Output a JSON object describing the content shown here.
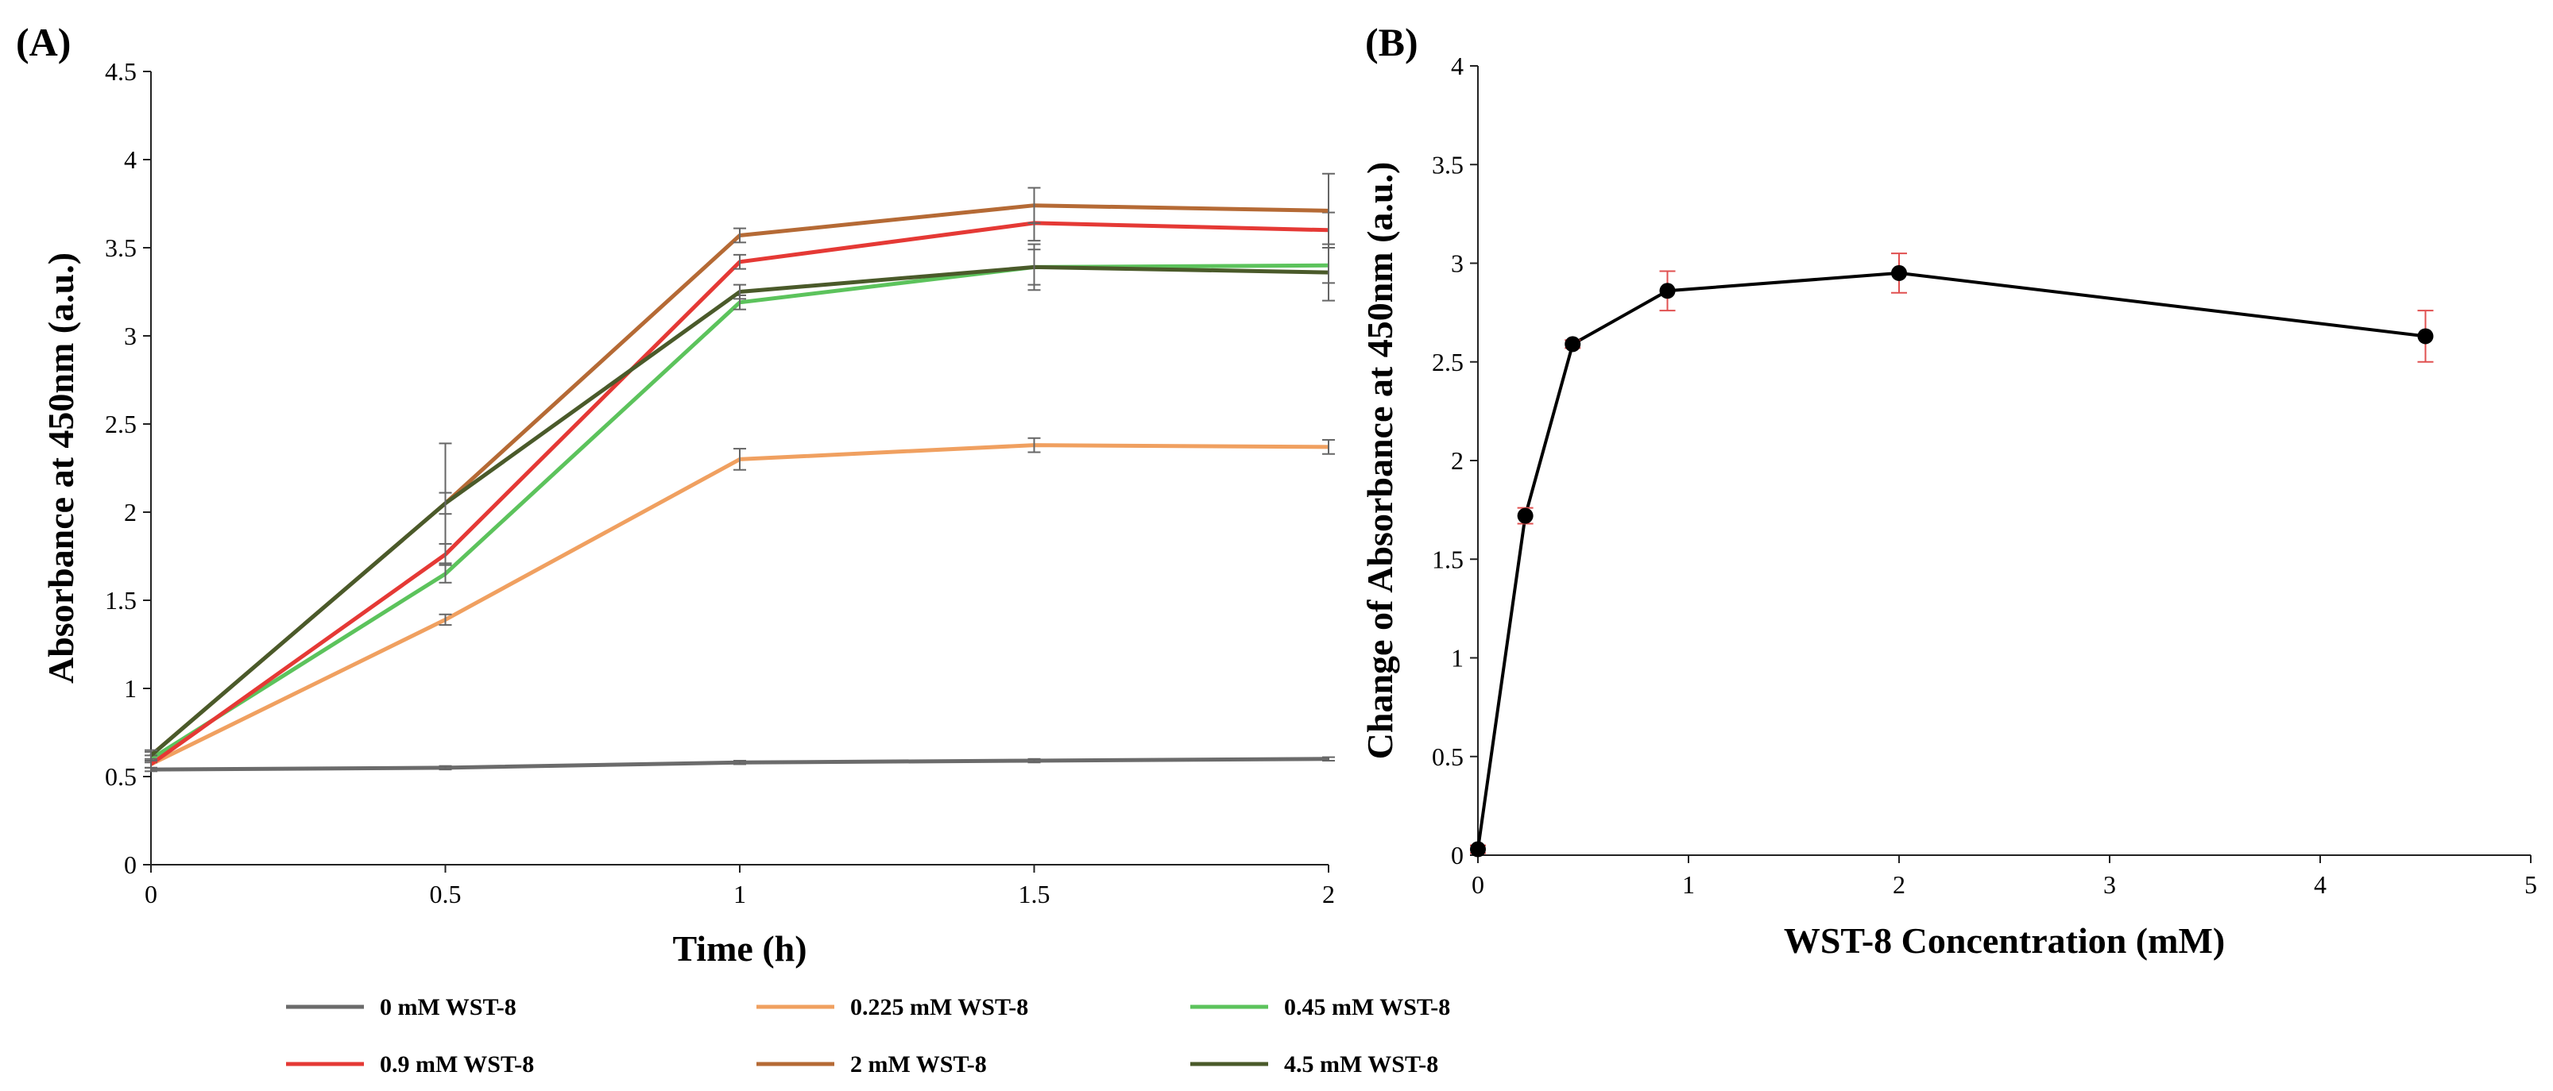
{
  "chart_data": [
    {
      "panel_label": "(A)",
      "type": "line",
      "xlabel": "Time (h)",
      "ylabel": "Absorbance at 450nm (a.u.)",
      "xlim": [
        0,
        2
      ],
      "ylim": [
        0,
        4.5
      ],
      "x_ticks": [
        "0",
        "0.5",
        "1",
        "1.5",
        "2"
      ],
      "y_ticks": [
        "0",
        "0.5",
        "1",
        "1.5",
        "2",
        "2.5",
        "3",
        "3.5",
        "4",
        "4.5"
      ],
      "x": [
        0,
        0.5,
        1,
        1.5,
        2
      ],
      "grid": false,
      "legend_position": "bottom",
      "series": [
        {
          "name": "0 mM WST-8",
          "color": "#6b6b6b",
          "values": [
            0.54,
            0.55,
            0.58,
            0.59,
            0.6
          ],
          "errors": [
            0.01,
            0.01,
            0.01,
            0.01,
            0.01
          ]
        },
        {
          "name": "0.225 mM WST-8",
          "color": "#f0a060",
          "values": [
            0.57,
            1.39,
            2.3,
            2.38,
            2.37
          ],
          "errors": [
            0.02,
            0.03,
            0.06,
            0.04,
            0.04
          ]
        },
        {
          "name": "0.45 mM WST-8",
          "color": "#5cc35c",
          "values": [
            0.6,
            1.65,
            3.19,
            3.39,
            3.4
          ],
          "errors": [
            0.02,
            0.05,
            0.04,
            0.1,
            0.1
          ]
        },
        {
          "name": "0.9 mM WST-8",
          "color": "#e53935",
          "values": [
            0.57,
            1.76,
            3.42,
            3.64,
            3.6
          ],
          "errors": [
            0.02,
            0.06,
            0.04,
            0.1,
            0.1
          ]
        },
        {
          "name": "2 mM WST-8",
          "color": "#b56a35",
          "values": [
            0.62,
            2.05,
            3.57,
            3.74,
            3.71
          ],
          "errors": [
            0.02,
            0.06,
            0.04,
            0.1,
            0.21
          ]
        },
        {
          "name": "4.5 mM WST-8",
          "color": "#4a5a2a",
          "values": [
            0.62,
            2.05,
            3.25,
            3.39,
            3.36
          ],
          "errors": [
            0.03,
            0.34,
            0.04,
            0.13,
            0.16
          ]
        }
      ]
    },
    {
      "panel_label": "(B)",
      "type": "line",
      "xlabel": "WST-8 Concentration (mM)",
      "ylabel": "Change of Absorbance at 450nm (a.u.)",
      "xlim": [
        0,
        5
      ],
      "ylim": [
        0,
        4
      ],
      "x_ticks": [
        "0",
        "1",
        "2",
        "3",
        "4",
        "5"
      ],
      "y_ticks": [
        "0",
        "0.5",
        "1",
        "1.5",
        "2",
        "2.5",
        "3",
        "3.5",
        "4"
      ],
      "grid": false,
      "line_color": "#000000",
      "error_color": "#e05050",
      "x": [
        0,
        0.225,
        0.45,
        0.9,
        2,
        4.5
      ],
      "values": [
        0.03,
        1.72,
        2.59,
        2.86,
        2.95,
        2.63
      ],
      "errors": [
        0.02,
        0.04,
        0.02,
        0.1,
        0.1,
        0.13
      ]
    }
  ]
}
